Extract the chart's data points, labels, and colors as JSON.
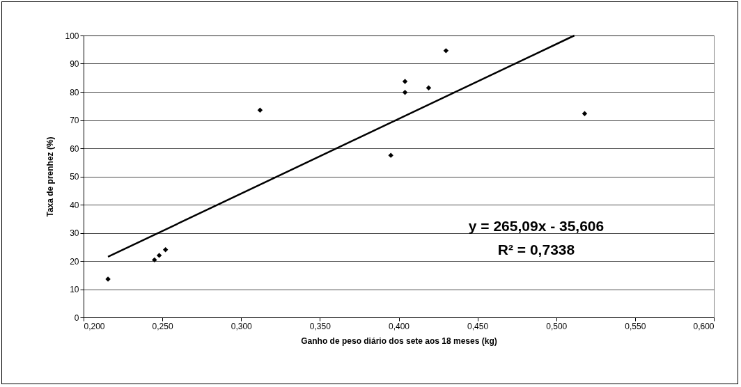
{
  "chart_data": {
    "type": "scatter",
    "xlabel": "Ganho de peso diário dos sete aos 18 meses (kg)",
    "ylabel": "Taxa de prenhez (%)",
    "xlim": [
      0.2,
      0.6
    ],
    "ylim": [
      0,
      100
    ],
    "xticks": [
      {
        "value": 0.2,
        "label": "0,200"
      },
      {
        "value": 0.25,
        "label": "0,250"
      },
      {
        "value": 0.3,
        "label": "0,300"
      },
      {
        "value": 0.35,
        "label": "0,350"
      },
      {
        "value": 0.4,
        "label": "0,400"
      },
      {
        "value": 0.45,
        "label": "0,450"
      },
      {
        "value": 0.5,
        "label": "0,500"
      },
      {
        "value": 0.55,
        "label": "0,550"
      },
      {
        "value": 0.6,
        "label": "0,600"
      }
    ],
    "yticks": [
      0,
      10,
      20,
      30,
      40,
      50,
      60,
      70,
      80,
      90,
      100
    ],
    "grid": "y",
    "marker": "diamond",
    "series": [
      {
        "color": "#000000",
        "x": [
          0.2155,
          0.245,
          0.248,
          0.252,
          0.312,
          0.395,
          0.404,
          0.404,
          0.419,
          0.43,
          0.518
        ],
        "values": [
          13.6,
          20.4,
          22.0,
          24.0,
          73.5,
          57.5,
          83.7,
          79.8,
          81.4,
          94.6,
          72.3
        ]
      },
      {
        "type": "line",
        "color": "#000000",
        "line_style": "solid",
        "marker": "none",
        "x": [
          0.2155,
          0.5115
        ],
        "values": [
          21.5,
          100
        ]
      }
    ],
    "annotations": [
      "y = 265,09x - 35,606",
      "R² = 0,7338"
    ]
  }
}
